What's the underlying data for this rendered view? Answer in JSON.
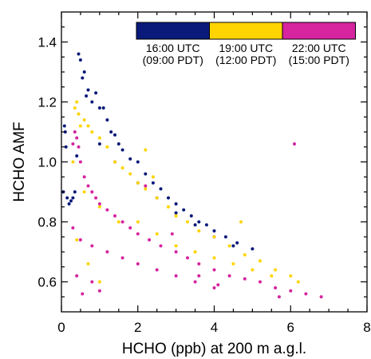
{
  "chart_data": {
    "type": "scatter",
    "xlabel": "HCHO (ppb) at 200 m a.g.l.",
    "ylabel": "HCHO AMF",
    "xlim": [
      0,
      8
    ],
    "ylim": [
      0.5,
      1.5
    ],
    "x_ticks": [
      "0",
      "2",
      "4",
      "6",
      "8"
    ],
    "y_ticks": [
      "0.6",
      "0.8",
      "1.0",
      "1.2",
      "1.4"
    ],
    "x_tick_values": [
      0,
      2,
      4,
      6,
      8
    ],
    "y_tick_values": [
      0.6,
      0.8,
      1.0,
      1.2,
      1.4
    ],
    "grid": false,
    "legend_position": "top-right",
    "series": [
      {
        "name": "16:00 UTC (09:00 PDT)",
        "label_line1": "16:00 UTC",
        "label_line2": "(09:00 PDT)",
        "color": "#0a1a7a",
        "points": [
          [
            0.05,
            0.9
          ],
          [
            0.08,
            1.12
          ],
          [
            0.1,
            1.1
          ],
          [
            0.12,
            1.05
          ],
          [
            0.15,
            0.88
          ],
          [
            0.2,
            0.86
          ],
          [
            0.25,
            0.87
          ],
          [
            0.3,
            0.88
          ],
          [
            0.35,
            0.9
          ],
          [
            0.4,
            1.02
          ],
          [
            0.45,
            1.36
          ],
          [
            0.5,
            1.34
          ],
          [
            0.55,
            1.28
          ],
          [
            0.6,
            1.3
          ],
          [
            0.65,
            1.22
          ],
          [
            0.7,
            1.24
          ],
          [
            0.8,
            1.2
          ],
          [
            0.9,
            1.23
          ],
          [
            1.0,
            1.18
          ],
          [
            1.1,
            1.18
          ],
          [
            1.2,
            1.14
          ],
          [
            1.3,
            1.1
          ],
          [
            1.4,
            1.09
          ],
          [
            1.5,
            1.06
          ],
          [
            1.6,
            1.04
          ],
          [
            1.8,
            1.01
          ],
          [
            2.0,
            1.0
          ],
          [
            2.2,
            0.96
          ],
          [
            2.4,
            0.93
          ],
          [
            2.6,
            0.91
          ],
          [
            2.8,
            0.88
          ],
          [
            3.0,
            0.86
          ],
          [
            3.2,
            0.84
          ],
          [
            3.4,
            0.82
          ],
          [
            3.6,
            0.8
          ],
          [
            3.8,
            0.79
          ],
          [
            4.0,
            0.77
          ],
          [
            4.3,
            0.75
          ],
          [
            4.6,
            0.73
          ],
          [
            5.0,
            0.71
          ],
          [
            1.0,
            1.06
          ],
          [
            1.4,
            1.0
          ],
          [
            2.0,
            0.93
          ],
          [
            2.5,
            0.88
          ],
          [
            3.0,
            0.83
          ],
          [
            3.5,
            0.79
          ],
          [
            4.0,
            0.75
          ],
          [
            4.5,
            0.72
          ]
        ]
      },
      {
        "name": "19:00 UTC (12:00 PDT)",
        "label_line1": "19:00 UTC",
        "label_line2": "(12:00 PDT)",
        "color": "#ffd400",
        "points": [
          [
            0.3,
            1.0
          ],
          [
            0.35,
            1.18
          ],
          [
            0.4,
            1.2
          ],
          [
            0.45,
            1.16
          ],
          [
            0.5,
            1.12
          ],
          [
            0.6,
            1.14
          ],
          [
            0.7,
            1.12
          ],
          [
            0.8,
            1.1
          ],
          [
            1.0,
            1.08
          ],
          [
            1.2,
            1.05
          ],
          [
            1.4,
            1.0
          ],
          [
            1.6,
            0.98
          ],
          [
            1.8,
            0.96
          ],
          [
            2.0,
            0.93
          ],
          [
            2.2,
            0.91
          ],
          [
            2.5,
            0.88
          ],
          [
            2.8,
            0.85
          ],
          [
            3.0,
            0.82
          ],
          [
            3.3,
            0.8
          ],
          [
            3.6,
            0.77
          ],
          [
            4.0,
            0.75
          ],
          [
            4.4,
            0.72
          ],
          [
            4.8,
            0.69
          ],
          [
            5.2,
            0.67
          ],
          [
            5.6,
            0.64
          ],
          [
            6.0,
            0.62
          ],
          [
            6.2,
            0.6
          ],
          [
            0.6,
            0.9
          ],
          [
            1.0,
            0.85
          ],
          [
            1.5,
            0.8
          ],
          [
            2.0,
            0.8
          ],
          [
            2.5,
            0.76
          ],
          [
            3.0,
            0.72
          ],
          [
            3.5,
            0.7
          ],
          [
            4.0,
            0.68
          ],
          [
            4.5,
            0.66
          ],
          [
            5.0,
            0.64
          ],
          [
            5.5,
            0.62
          ],
          [
            2.2,
            1.04
          ],
          [
            2.4,
            0.95
          ],
          [
            0.4,
            0.74
          ],
          [
            0.7,
            0.66
          ],
          [
            1.0,
            0.6
          ],
          [
            4.7,
            0.8
          ]
        ]
      },
      {
        "name": "22:00 UTC (15:00 PDT)",
        "label_line1": "22:00 UTC",
        "label_line2": "(15:00 PDT)",
        "color": "#d6249f",
        "points": [
          [
            0.3,
            1.06
          ],
          [
            0.35,
            1.1
          ],
          [
            0.4,
            1.08
          ],
          [
            0.45,
            1.05
          ],
          [
            0.5,
            1.0
          ],
          [
            0.6,
            0.95
          ],
          [
            0.7,
            0.92
          ],
          [
            0.8,
            0.9
          ],
          [
            0.9,
            0.88
          ],
          [
            1.0,
            0.86
          ],
          [
            1.2,
            0.84
          ],
          [
            1.4,
            0.82
          ],
          [
            1.6,
            0.8
          ],
          [
            1.8,
            0.78
          ],
          [
            2.0,
            0.76
          ],
          [
            2.3,
            0.74
          ],
          [
            2.6,
            0.72
          ],
          [
            3.0,
            0.7
          ],
          [
            3.3,
            0.68
          ],
          [
            3.6,
            0.66
          ],
          [
            4.0,
            0.64
          ],
          [
            4.4,
            0.62
          ],
          [
            4.8,
            0.61
          ],
          [
            5.2,
            0.6
          ],
          [
            5.6,
            0.58
          ],
          [
            6.0,
            0.57
          ],
          [
            6.4,
            0.56
          ],
          [
            6.8,
            0.55
          ],
          [
            0.3,
            0.78
          ],
          [
            0.5,
            0.74
          ],
          [
            0.8,
            0.72
          ],
          [
            1.2,
            0.7
          ],
          [
            1.6,
            0.68
          ],
          [
            2.0,
            0.66
          ],
          [
            2.5,
            0.64
          ],
          [
            3.0,
            0.62
          ],
          [
            3.5,
            0.6
          ],
          [
            4.0,
            0.58
          ],
          [
            0.4,
            0.62
          ],
          [
            0.55,
            0.56
          ],
          [
            1.0,
            0.57
          ],
          [
            0.8,
            0.6
          ],
          [
            2.2,
            0.92
          ],
          [
            6.1,
            1.06
          ],
          [
            2.9,
            0.76
          ],
          [
            3.6,
            0.62
          ],
          [
            5.7,
            0.55
          ],
          [
            4.1,
            0.59
          ]
        ]
      }
    ]
  }
}
